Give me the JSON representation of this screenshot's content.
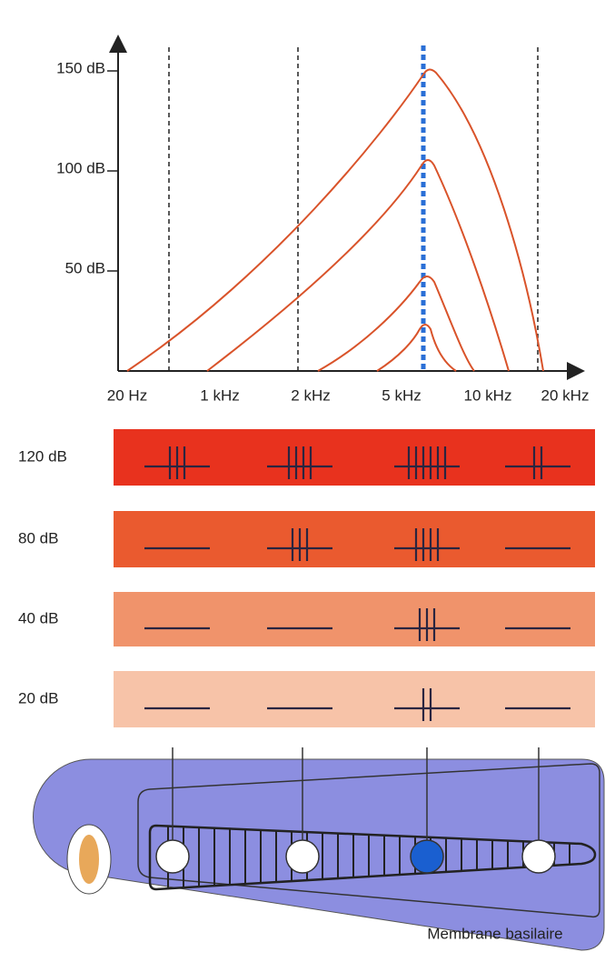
{
  "y_axis": {
    "labels": [
      "150 dB",
      "100 dB",
      "50 dB"
    ]
  },
  "x_axis": {
    "labels": [
      "20 Hz",
      "1 kHz",
      "2 kHz",
      "5 kHz",
      "10 kHz",
      "20 kHz"
    ]
  },
  "bands": {
    "labels": [
      "120 dB",
      "80 dB",
      "40 dB",
      "20 dB"
    ]
  },
  "membrane": {
    "label": "Membrane basilaire"
  }
}
